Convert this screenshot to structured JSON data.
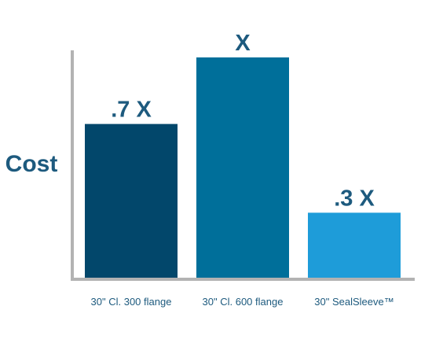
{
  "chart_data": {
    "type": "bar",
    "title": "",
    "xlabel": "",
    "ylabel": "Cost",
    "categories": [
      "30\" Cl. 300 flange",
      "30\" Cl. 600 flange",
      "30\" SealSleeve™"
    ],
    "values": [
      0.7,
      1.0,
      0.3
    ],
    "data_labels": [
      ".7 X",
      "X",
      ".3 X"
    ],
    "ylim": [
      0,
      1.0
    ],
    "grid": false,
    "legend": "none",
    "colors": [
      "#02476b",
      "#006f9a",
      "#1e9cd9"
    ],
    "axis_color": "#b3b3b3",
    "text_color": "#1d5a7e"
  }
}
